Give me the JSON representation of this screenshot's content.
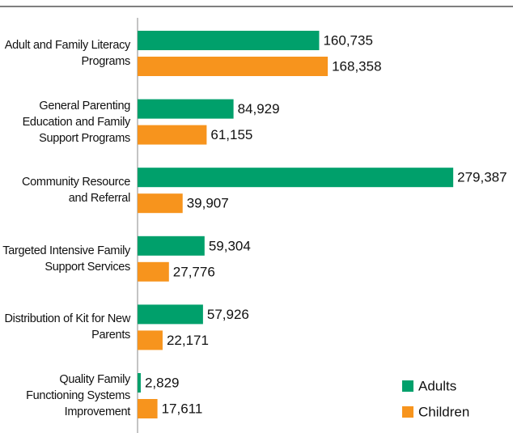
{
  "chart_data": {
    "type": "bar",
    "orientation": "horizontal",
    "categories": [
      "Adult and Family Literacy Programs",
      "General Parenting Education and Family Support Programs",
      "Community Resource and Referral",
      "Targeted Intensive Family Support Services",
      "Distribution of Kit for New Parents",
      "Quality Family Functioning Systems Improvement"
    ],
    "series": [
      {
        "name": "Adults",
        "color": "#00a06b",
        "values": [
          160735,
          84929,
          279387,
          59304,
          57926,
          2829
        ],
        "value_labels": [
          "160,735",
          "84,929",
          "279,387",
          "59,304",
          "57,926",
          "2,829"
        ]
      },
      {
        "name": "Children",
        "color": "#f7941d",
        "values": [
          168358,
          61155,
          39907,
          27776,
          22171,
          17611
        ],
        "value_labels": [
          "168,358",
          "61,155",
          "39,907",
          "27,776",
          "22,171",
          "17,611"
        ]
      }
    ],
    "xlim": [
      0,
      280000
    ],
    "legend": "lower right"
  }
}
